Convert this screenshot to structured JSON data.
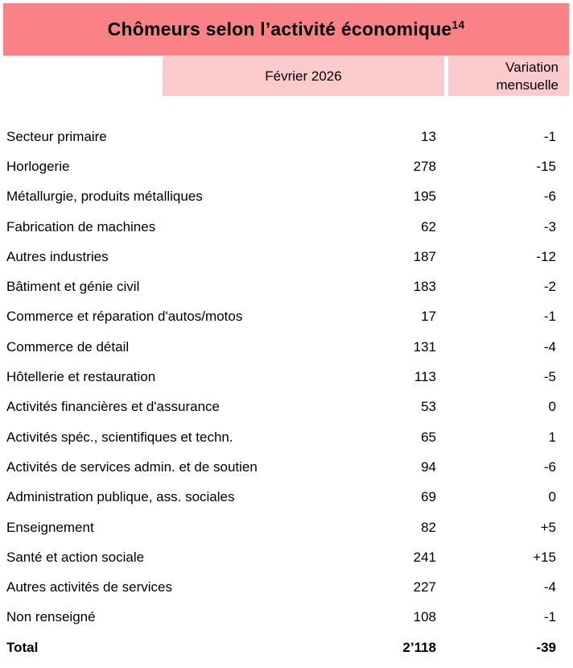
{
  "title": {
    "text": "Chômeurs selon l’activité économique",
    "superscript": "14"
  },
  "header": {
    "period": "Février 2026",
    "variation": "Variation\nmensuelle"
  },
  "colors": {
    "title_bg": "#FA8186",
    "header_bg": "#FBCBCC",
    "text": "#000000"
  },
  "table": {
    "rows": [
      {
        "label": "Secteur primaire",
        "value": "13",
        "variation": "-1"
      },
      {
        "label": "Horlogerie",
        "value": "278",
        "variation": "-15"
      },
      {
        "label": "Métallurgie, produits métalliques",
        "value": "195",
        "variation": "-6"
      },
      {
        "label": "Fabrication de machines",
        "value": "62",
        "variation": "-3"
      },
      {
        "label": "Autres industries",
        "value": "187",
        "variation": "-12"
      },
      {
        "label": "Bâtiment et génie civil",
        "value": "183",
        "variation": "-2"
      },
      {
        "label": "Commerce et réparation d'autos/motos",
        "value": "17",
        "variation": "-1"
      },
      {
        "label": "Commerce de détail",
        "value": "131",
        "variation": "-4"
      },
      {
        "label": "Hôtellerie et restauration",
        "value": "113",
        "variation": "-5"
      },
      {
        "label": "Activités financières et d'assurance",
        "value": "53",
        "variation": "0"
      },
      {
        "label": "Activités spéc., scientifiques et techn.",
        "value": "65",
        "variation": "1"
      },
      {
        "label": "Activités de services admin. et de soutien",
        "value": "94",
        "variation": "-6"
      },
      {
        "label": "Administration publique, ass. sociales",
        "value": "69",
        "variation": "0"
      },
      {
        "label": "Enseignement",
        "value": "82",
        "variation": "+5"
      },
      {
        "label": "Santé et action sociale",
        "value": "241",
        "variation": "+15"
      },
      {
        "label": "Autres activités de services",
        "value": "227",
        "variation": "-4"
      },
      {
        "label": "Non renseigné",
        "value": "108",
        "variation": "-1"
      }
    ],
    "total": {
      "label": "Total",
      "value": "2’118",
      "variation": "-39"
    }
  }
}
